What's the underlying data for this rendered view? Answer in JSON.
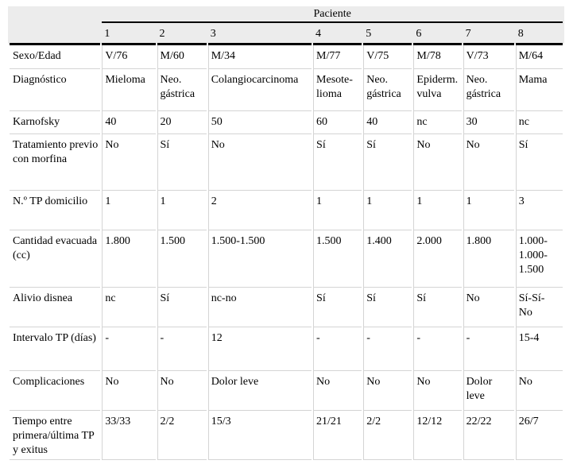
{
  "colors": {
    "header_band": "#ececec",
    "thick_rule": "#000000",
    "thin_rule": "#d4d4d4",
    "text": "#000000",
    "background": "#ffffff"
  },
  "table": {
    "group_header": "Paciente",
    "column_headers": [
      "1",
      "2",
      "3",
      "4",
      "5",
      "6",
      "7",
      "8"
    ],
    "rows": [
      {
        "label": "Sexo/Edad",
        "values": [
          "V/76",
          "M/60",
          "M/34",
          "M/77",
          "V/75",
          "M/78",
          "V/73",
          "M/64"
        ]
      },
      {
        "label": "Diagnóstico",
        "values": [
          "Mieloma",
          "Neo. gástrica",
          "Colangiocarcinoma",
          "Mesote-\nlioma",
          "Neo. gástrica",
          "Epiderm. vulva",
          "Neo. gástrica",
          "Mama"
        ]
      },
      {
        "label": "Karnofsky",
        "values": [
          "40",
          "20",
          "50",
          "60",
          "40",
          "nc",
          "30",
          "nc"
        ]
      },
      {
        "label": "Tratamiento previo con morfina",
        "values": [
          "No",
          "Sí",
          "No",
          "Sí",
          "Sí",
          "No",
          "No",
          "Sí"
        ]
      },
      {
        "label": "N.º TP domicilio",
        "values": [
          "1",
          "1",
          "2",
          "1",
          "1",
          "1",
          "1",
          "3"
        ]
      },
      {
        "label": "Cantidad evacuada (cc)",
        "values": [
          "1.800",
          "1.500",
          "1.500-1.500",
          "1.500",
          "1.400",
          "2.000",
          "1.800",
          "1.000-\n1.000-\n1.500"
        ]
      },
      {
        "label": "Alivio disnea",
        "values": [
          "nc",
          "Sí",
          "nc-no",
          "Sí",
          "Sí",
          "Sí",
          "No",
          "Sí-Sí-\nNo"
        ]
      },
      {
        "label": "Intervalo TP (días)",
        "values": [
          "-",
          "-",
          "12",
          "-",
          "-",
          "-",
          "-",
          "15-4"
        ]
      },
      {
        "label": "Complicaciones",
        "values": [
          "No",
          "No",
          "Dolor leve",
          "No",
          "No",
          "No",
          "Dolor leve",
          "No"
        ]
      },
      {
        "label": "Tiempo entre primera/última TP y exitus",
        "values": [
          "33/33",
          "2/2",
          "15/3",
          "21/21",
          "2/2",
          "12/12",
          "22/22",
          "26/7"
        ]
      }
    ]
  }
}
